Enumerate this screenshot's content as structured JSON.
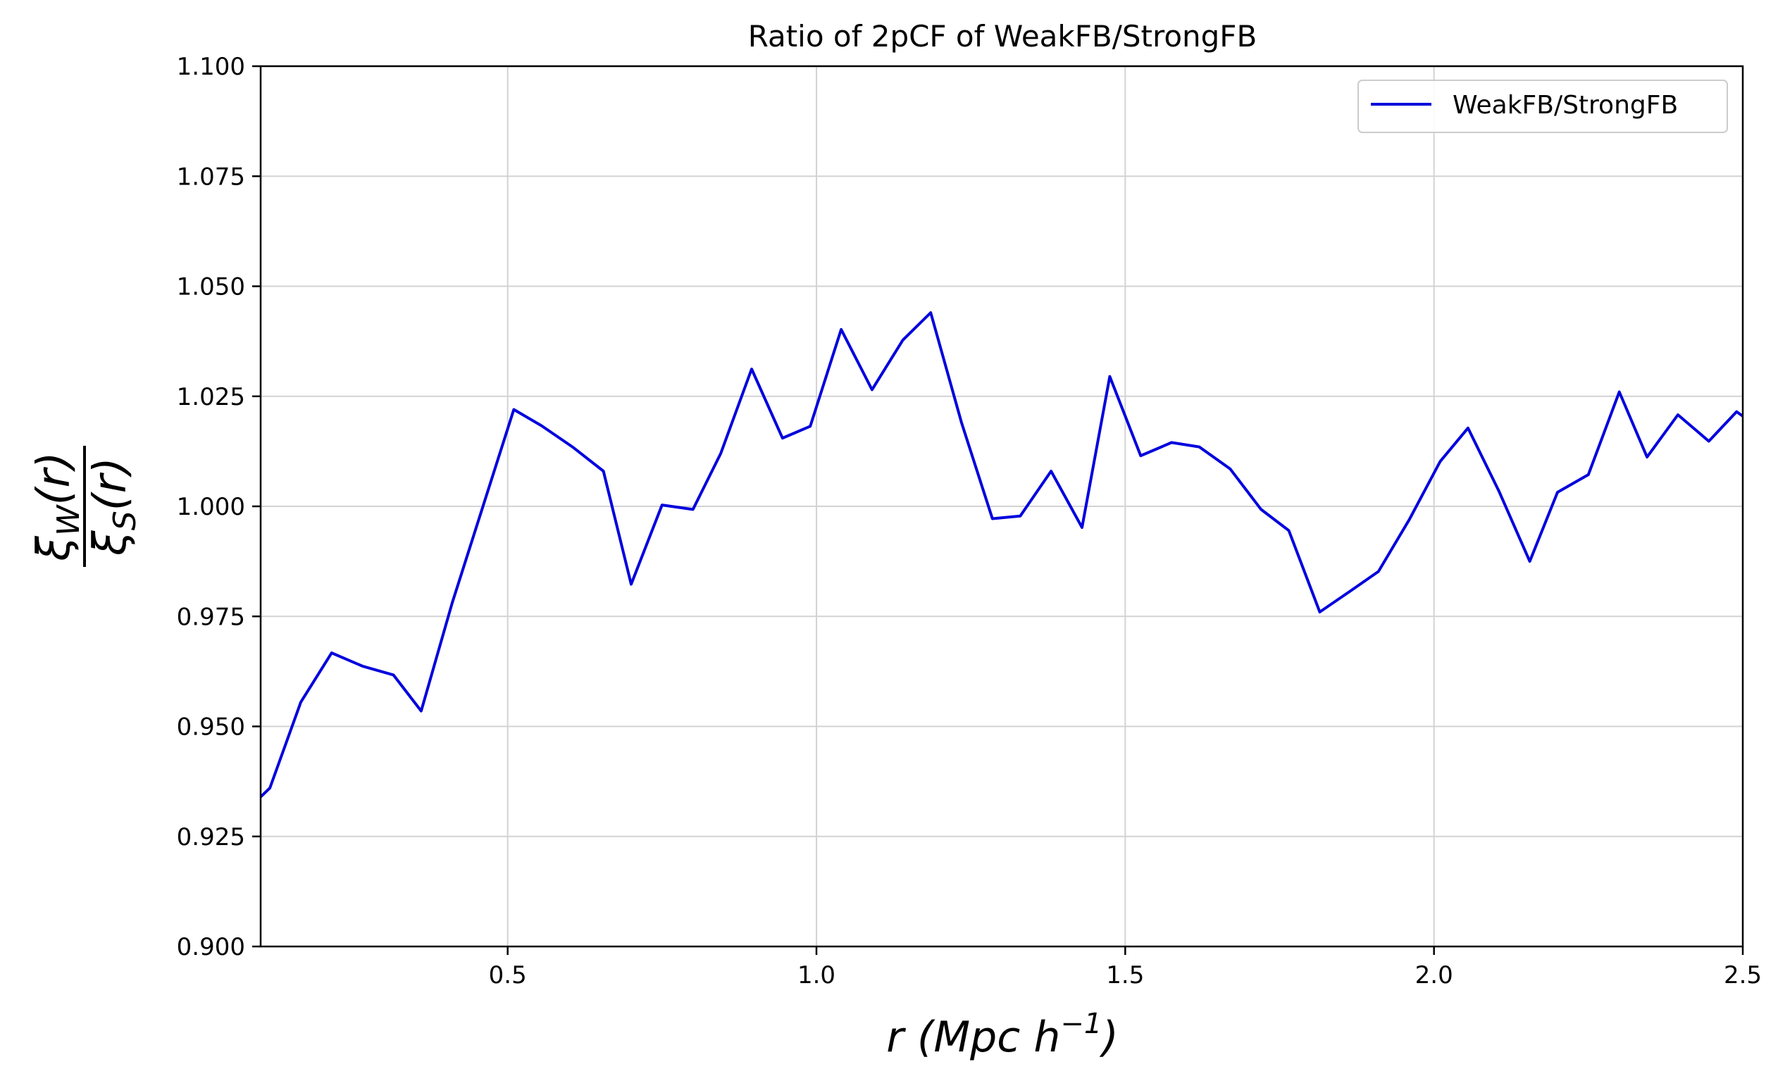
{
  "chart_data": {
    "type": "line",
    "title": "Ratio of 2pCF of WeakFB/StrongFB",
    "xlabel": "r (Mpc h",
    "xlabel_sup": "−1",
    "xlabel_close": ")",
    "ylabel_num_main": "ξ",
    "ylabel_num_sub": "W",
    "ylabel_num_arg": "(r)",
    "ylabel_den_main": "ξ",
    "ylabel_den_sub": "S",
    "ylabel_den_arg": "(r)",
    "xlim": [
      0.1,
      2.5
    ],
    "ylim": [
      0.9,
      1.1
    ],
    "xticks": [
      0.5,
      1.0,
      1.5,
      2.0,
      2.5
    ],
    "xtick_labels": [
      "0.5",
      "1.0",
      "1.5",
      "2.0",
      "2.5"
    ],
    "yticks": [
      0.9,
      0.925,
      0.95,
      0.975,
      1.0,
      1.025,
      1.05,
      1.075,
      1.1
    ],
    "ytick_labels": [
      "0.900",
      "0.925",
      "0.950",
      "0.975",
      "1.000",
      "1.025",
      "1.050",
      "1.075",
      "1.100"
    ],
    "grid": true,
    "legend": "top-right",
    "series": [
      {
        "name": "WeakFB/StrongFB",
        "color": "#0000dd",
        "x": [
          0.1,
          0.115,
          0.165,
          0.215,
          0.265,
          0.315,
          0.36,
          0.41,
          0.46,
          0.51,
          0.555,
          0.605,
          0.655,
          0.7,
          0.75,
          0.8,
          0.845,
          0.895,
          0.945,
          0.99,
          1.04,
          1.09,
          1.14,
          1.185,
          1.235,
          1.285,
          1.33,
          1.38,
          1.43,
          1.475,
          1.525,
          1.575,
          1.62,
          1.67,
          1.72,
          1.765,
          1.815,
          1.865,
          1.91,
          1.96,
          2.01,
          2.055,
          2.105,
          2.155,
          2.2,
          2.25,
          2.3,
          2.345,
          2.395,
          2.445,
          2.49,
          2.5
        ],
        "y": [
          0.934,
          0.936,
          0.9555,
          0.9667,
          0.9637,
          0.9617,
          0.9535,
          0.978,
          1.0,
          1.022,
          1.0183,
          1.0135,
          1.008,
          0.9823,
          1.0003,
          0.9993,
          1.012,
          1.0312,
          1.0155,
          1.0182,
          1.0402,
          1.0265,
          1.0378,
          1.044,
          1.019,
          0.9972,
          0.9978,
          1.008,
          0.9952,
          1.0295,
          1.0115,
          1.0145,
          1.0135,
          1.0085,
          0.9993,
          0.9945,
          0.976,
          0.9808,
          0.9852,
          0.997,
          1.0102,
          1.0178,
          1.0035,
          0.9875,
          1.0032,
          1.0072,
          1.026,
          1.0112,
          1.0208,
          1.0148,
          1.0215,
          1.0205
        ]
      }
    ]
  }
}
